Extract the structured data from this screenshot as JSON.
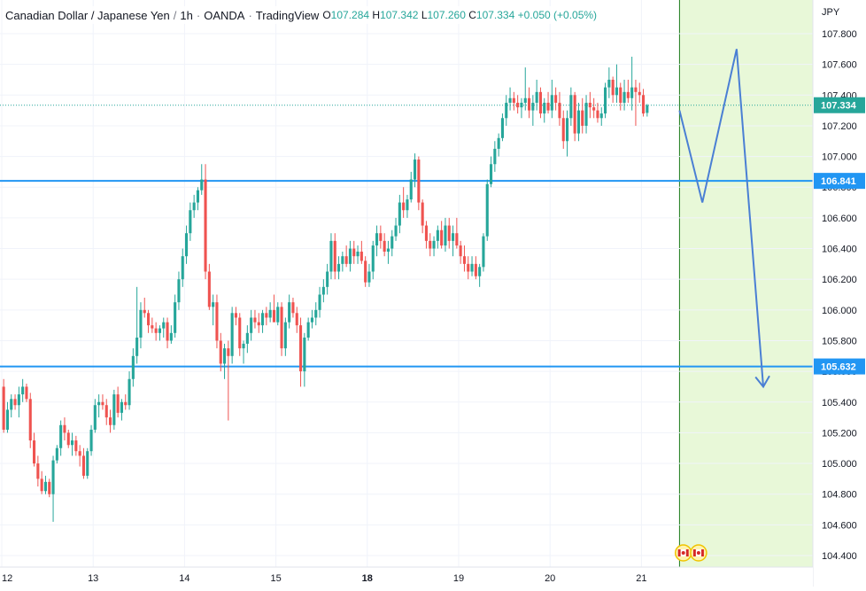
{
  "header": {
    "symbol": "Canadian Dollar / Japanese Yen",
    "interval": "1h",
    "broker": "OANDA",
    "platform": "TradingView",
    "sep": "·",
    "o_label": "O",
    "o_value": "107.284",
    "h_label": "H",
    "h_value": "107.342",
    "l_label": "L",
    "l_value": "107.260",
    "c_label": "C",
    "c_value": "107.334",
    "change": "+0.050 (+0.05%)"
  },
  "chart_data": {
    "type": "candlestick",
    "currency_label": "JPY",
    "y_ticks": [
      "107.800",
      "107.600",
      "107.400",
      "107.200",
      "107.000",
      "106.800",
      "106.600",
      "106.400",
      "106.200",
      "106.000",
      "105.800",
      "105.600",
      "105.400",
      "105.200",
      "105.000",
      "104.800",
      "104.600",
      "104.400"
    ],
    "ylim": [
      104.35,
      107.93
    ],
    "x_ticks": [
      {
        "label": "12",
        "bar": 0
      },
      {
        "label": "13",
        "bar": 24
      },
      {
        "label": "14",
        "bar": 48
      },
      {
        "label": "15",
        "bar": 72
      },
      {
        "label": "18",
        "bar": 96
      },
      {
        "label": "19",
        "bar": 120
      },
      {
        "label": "20",
        "bar": 144
      },
      {
        "label": "21",
        "bar": 168
      }
    ],
    "bars_total": 205,
    "candles": [
      [
        105.5,
        105.55,
        105.2,
        105.22
      ],
      [
        105.22,
        105.4,
        105.2,
        105.35
      ],
      [
        105.35,
        105.45,
        105.3,
        105.42
      ],
      [
        105.42,
        105.45,
        105.35,
        105.38
      ],
      [
        105.38,
        105.5,
        105.3,
        105.45
      ],
      [
        105.45,
        105.55,
        105.4,
        105.5
      ],
      [
        105.5,
        105.52,
        105.4,
        105.42
      ],
      [
        105.42,
        105.46,
        105.1,
        105.15
      ],
      [
        105.15,
        105.2,
        104.98,
        105.0
      ],
      [
        105.0,
        105.05,
        104.85,
        104.9
      ],
      [
        104.9,
        104.95,
        104.8,
        104.82
      ],
      [
        104.82,
        104.92,
        104.8,
        104.88
      ],
      [
        104.88,
        104.9,
        104.78,
        104.8
      ],
      [
        104.8,
        105.05,
        104.62,
        105.02
      ],
      [
        105.02,
        105.12,
        105.0,
        105.1
      ],
      [
        105.1,
        105.28,
        105.05,
        105.25
      ],
      [
        105.25,
        105.3,
        105.15,
        105.2
      ],
      [
        105.2,
        105.22,
        105.1,
        105.12
      ],
      [
        105.12,
        105.2,
        105.05,
        105.15
      ],
      [
        105.15,
        105.18,
        105.05,
        105.08
      ],
      [
        105.08,
        105.12,
        104.98,
        105.05
      ],
      [
        105.05,
        105.1,
        104.9,
        104.92
      ],
      [
        104.92,
        105.1,
        104.9,
        105.08
      ],
      [
        105.08,
        105.25,
        105.05,
        105.22
      ],
      [
        105.22,
        105.42,
        105.2,
        105.38
      ],
      [
        105.38,
        105.45,
        105.3,
        105.4
      ],
      [
        105.4,
        105.45,
        105.35,
        105.38
      ],
      [
        105.38,
        105.42,
        105.25,
        105.3
      ],
      [
        105.3,
        105.35,
        105.2,
        105.25
      ],
      [
        105.25,
        105.48,
        105.22,
        105.45
      ],
      [
        105.45,
        105.5,
        105.3,
        105.33
      ],
      [
        105.33,
        105.42,
        105.28,
        105.4
      ],
      [
        105.4,
        105.45,
        105.35,
        105.38
      ],
      [
        105.38,
        105.6,
        105.35,
        105.55
      ],
      [
        105.55,
        105.75,
        105.5,
        105.7
      ],
      [
        105.7,
        106.15,
        105.65,
        105.82
      ],
      [
        105.82,
        106.05,
        105.75,
        106.0
      ],
      [
        106.0,
        106.08,
        105.95,
        105.98
      ],
      [
        105.98,
        106.0,
        105.85,
        105.9
      ],
      [
        105.9,
        105.95,
        105.85,
        105.88
      ],
      [
        105.88,
        105.92,
        105.8,
        105.85
      ],
      [
        105.85,
        105.9,
        105.8,
        105.88
      ],
      [
        105.88,
        105.95,
        105.82,
        105.92
      ],
      [
        105.92,
        105.95,
        105.75,
        105.8
      ],
      [
        105.8,
        105.9,
        105.78,
        105.85
      ],
      [
        105.85,
        106.1,
        105.82,
        106.05
      ],
      [
        106.05,
        106.25,
        106.0,
        106.2
      ],
      [
        106.2,
        106.4,
        106.15,
        106.35
      ],
      [
        106.35,
        106.55,
        106.3,
        106.5
      ],
      [
        106.5,
        106.7,
        106.45,
        106.65
      ],
      [
        106.65,
        106.75,
        106.6,
        106.7
      ],
      [
        106.7,
        106.8,
        106.65,
        106.78
      ],
      [
        106.78,
        106.95,
        106.75,
        106.85
      ],
      [
        106.85,
        106.95,
        106.2,
        106.25
      ],
      [
        106.25,
        106.3,
        106.0,
        106.02
      ],
      [
        106.02,
        106.1,
        105.9,
        106.05
      ],
      [
        106.05,
        106.1,
        105.75,
        105.8
      ],
      [
        105.8,
        105.85,
        105.6,
        105.65
      ],
      [
        105.65,
        105.78,
        105.55,
        105.75
      ],
      [
        105.75,
        105.8,
        105.28,
        105.7
      ],
      [
        105.7,
        106.02,
        105.65,
        105.98
      ],
      [
        105.98,
        106.02,
        105.9,
        105.95
      ],
      [
        105.95,
        105.98,
        105.7,
        105.75
      ],
      [
        105.75,
        105.8,
        105.65,
        105.78
      ],
      [
        105.78,
        105.9,
        105.72,
        105.85
      ],
      [
        105.85,
        106.0,
        105.8,
        105.95
      ],
      [
        105.95,
        106.0,
        105.88,
        105.92
      ],
      [
        105.92,
        105.98,
        105.85,
        105.9
      ],
      [
        105.9,
        106.0,
        105.85,
        105.98
      ],
      [
        105.98,
        106.02,
        105.9,
        105.95
      ],
      [
        105.95,
        106.05,
        105.92,
        106.0
      ],
      [
        106.0,
        106.1,
        105.95,
        105.92
      ],
      [
        105.92,
        106.05,
        105.9,
        106.02
      ],
      [
        106.02,
        106.05,
        105.7,
        105.75
      ],
      [
        105.75,
        105.95,
        105.7,
        105.92
      ],
      [
        105.92,
        106.1,
        105.88,
        106.05
      ],
      [
        106.05,
        106.08,
        105.95,
        105.98
      ],
      [
        105.98,
        106.02,
        105.85,
        105.9
      ],
      [
        105.9,
        105.95,
        105.5,
        105.6
      ],
      [
        105.6,
        105.85,
        105.5,
        105.82
      ],
      [
        105.82,
        105.95,
        105.8,
        105.92
      ],
      [
        105.92,
        106.0,
        105.88,
        105.95
      ],
      [
        105.95,
        106.05,
        105.9,
        106.0
      ],
      [
        106.0,
        106.15,
        105.95,
        106.1
      ],
      [
        106.1,
        106.2,
        106.05,
        106.15
      ],
      [
        106.15,
        106.3,
        106.1,
        106.25
      ],
      [
        106.25,
        106.5,
        106.2,
        106.45
      ],
      [
        106.45,
        106.5,
        106.2,
        106.25
      ],
      [
        106.25,
        106.35,
        106.2,
        106.3
      ],
      [
        106.3,
        106.38,
        106.25,
        106.35
      ],
      [
        106.35,
        106.42,
        106.28,
        106.3
      ],
      [
        106.3,
        106.45,
        106.25,
        106.4
      ],
      [
        106.4,
        106.45,
        106.3,
        106.35
      ],
      [
        106.35,
        106.42,
        106.3,
        106.38
      ],
      [
        106.38,
        106.45,
        106.3,
        106.32
      ],
      [
        106.32,
        106.35,
        106.15,
        106.18
      ],
      [
        106.18,
        106.3,
        106.15,
        106.25
      ],
      [
        106.25,
        106.45,
        106.2,
        106.42
      ],
      [
        106.42,
        106.55,
        106.35,
        106.5
      ],
      [
        106.5,
        106.55,
        106.4,
        106.45
      ],
      [
        106.45,
        106.5,
        106.35,
        106.38
      ],
      [
        106.38,
        106.45,
        106.3,
        106.4
      ],
      [
        106.4,
        106.52,
        106.35,
        106.48
      ],
      [
        106.48,
        106.6,
        106.45,
        106.55
      ],
      [
        106.55,
        106.75,
        106.5,
        106.7
      ],
      [
        106.7,
        106.8,
        106.6,
        106.65
      ],
      [
        106.65,
        106.75,
        106.6,
        106.72
      ],
      [
        106.72,
        106.9,
        106.7,
        106.85
      ],
      [
        106.85,
        107.02,
        106.8,
        106.98
      ],
      [
        106.98,
        107.0,
        106.65,
        106.7
      ],
      [
        106.7,
        106.72,
        106.5,
        106.55
      ],
      [
        106.55,
        106.58,
        106.4,
        106.45
      ],
      [
        106.45,
        106.5,
        106.35,
        106.4
      ],
      [
        106.4,
        106.48,
        106.35,
        106.45
      ],
      [
        106.45,
        106.55,
        106.4,
        106.52
      ],
      [
        106.52,
        106.58,
        106.4,
        106.42
      ],
      [
        106.42,
        106.6,
        106.38,
        106.55
      ],
      [
        106.55,
        106.6,
        106.4,
        106.45
      ],
      [
        106.45,
        106.55,
        106.35,
        106.5
      ],
      [
        106.5,
        106.6,
        106.4,
        106.42
      ],
      [
        106.42,
        106.45,
        106.3,
        106.35
      ],
      [
        106.35,
        106.42,
        106.25,
        106.3
      ],
      [
        106.3,
        106.35,
        106.2,
        106.25
      ],
      [
        106.25,
        106.35,
        106.22,
        106.3
      ],
      [
        106.3,
        106.35,
        106.2,
        106.22
      ],
      [
        106.22,
        106.3,
        106.15,
        106.28
      ],
      [
        106.28,
        106.5,
        106.25,
        106.48
      ],
      [
        106.48,
        106.85,
        106.45,
        106.82
      ],
      [
        106.82,
        107.0,
        106.8,
        106.95
      ],
      [
        106.95,
        107.1,
        106.9,
        107.05
      ],
      [
        107.05,
        107.15,
        107.0,
        107.12
      ],
      [
        107.12,
        107.28,
        107.1,
        107.25
      ],
      [
        107.25,
        107.4,
        107.2,
        107.35
      ],
      [
        107.35,
        107.45,
        107.3,
        107.38
      ],
      [
        107.38,
        107.42,
        107.3,
        107.35
      ],
      [
        107.35,
        107.4,
        107.28,
        107.32
      ],
      [
        107.32,
        107.38,
        107.25,
        107.35
      ],
      [
        107.35,
        107.58,
        107.3,
        107.38
      ],
      [
        107.38,
        107.45,
        107.25,
        107.3
      ],
      [
        107.3,
        107.4,
        107.2,
        107.35
      ],
      [
        107.35,
        107.5,
        107.3,
        107.42
      ],
      [
        107.42,
        107.45,
        107.25,
        107.28
      ],
      [
        107.28,
        107.38,
        107.22,
        107.35
      ],
      [
        107.35,
        107.42,
        107.28,
        107.3
      ],
      [
        107.3,
        107.5,
        107.25,
        107.4
      ],
      [
        107.4,
        107.45,
        107.3,
        107.35
      ],
      [
        107.35,
        107.42,
        107.2,
        107.25
      ],
      [
        107.25,
        107.3,
        107.05,
        107.1
      ],
      [
        107.1,
        107.3,
        107.0,
        107.25
      ],
      [
        107.25,
        107.45,
        107.2,
        107.4
      ],
      [
        107.4,
        107.42,
        107.1,
        107.15
      ],
      [
        107.15,
        107.35,
        107.1,
        107.3
      ],
      [
        107.3,
        107.38,
        107.15,
        107.2
      ],
      [
        107.2,
        107.4,
        107.15,
        107.35
      ],
      [
        107.35,
        107.42,
        107.25,
        107.32
      ],
      [
        107.32,
        107.38,
        107.25,
        107.3
      ],
      [
        107.3,
        107.35,
        107.22,
        107.25
      ],
      [
        107.25,
        107.32,
        107.2,
        107.28
      ],
      [
        107.28,
        107.48,
        107.25,
        107.45
      ],
      [
        107.45,
        107.58,
        107.38,
        107.5
      ],
      [
        107.5,
        107.52,
        107.35,
        107.4
      ],
      [
        107.4,
        107.6,
        107.35,
        107.45
      ],
      [
        107.45,
        107.48,
        107.3,
        107.35
      ],
      [
        107.35,
        107.5,
        107.3,
        107.42
      ],
      [
        107.42,
        107.5,
        107.35,
        107.38
      ],
      [
        107.38,
        107.65,
        107.3,
        107.45
      ],
      [
        107.45,
        107.5,
        107.2,
        107.42
      ],
      [
        107.42,
        107.48,
        107.35,
        107.4
      ],
      [
        107.4,
        107.44,
        107.26,
        107.28
      ],
      [
        107.284,
        107.342,
        107.26,
        107.334
      ]
    ],
    "levels": [
      {
        "label": "106.841",
        "value": 106.841,
        "color": "#2196f3"
      },
      {
        "label": "105.632",
        "value": 105.632,
        "color": "#2196f3"
      }
    ],
    "last_price": {
      "label": "107.334",
      "value": 107.334,
      "color": "#26a69a"
    },
    "projection": [
      {
        "bar": 178,
        "value": 107.3
      },
      {
        "bar": 184,
        "value": 106.7
      },
      {
        "bar": 193,
        "value": 107.7
      },
      {
        "bar": 200,
        "value": 105.5
      }
    ],
    "projection_color": "#4a7fd4",
    "forecast_zone_start_bar": 178,
    "forecast_zone_color": "#e8f8d8",
    "up_color": "#26a69a",
    "down_color": "#ef5350",
    "events": [
      {
        "name": "canada-flag-event-1",
        "bar": 179
      },
      {
        "name": "canada-flag-event-2",
        "bar": 183
      }
    ]
  }
}
